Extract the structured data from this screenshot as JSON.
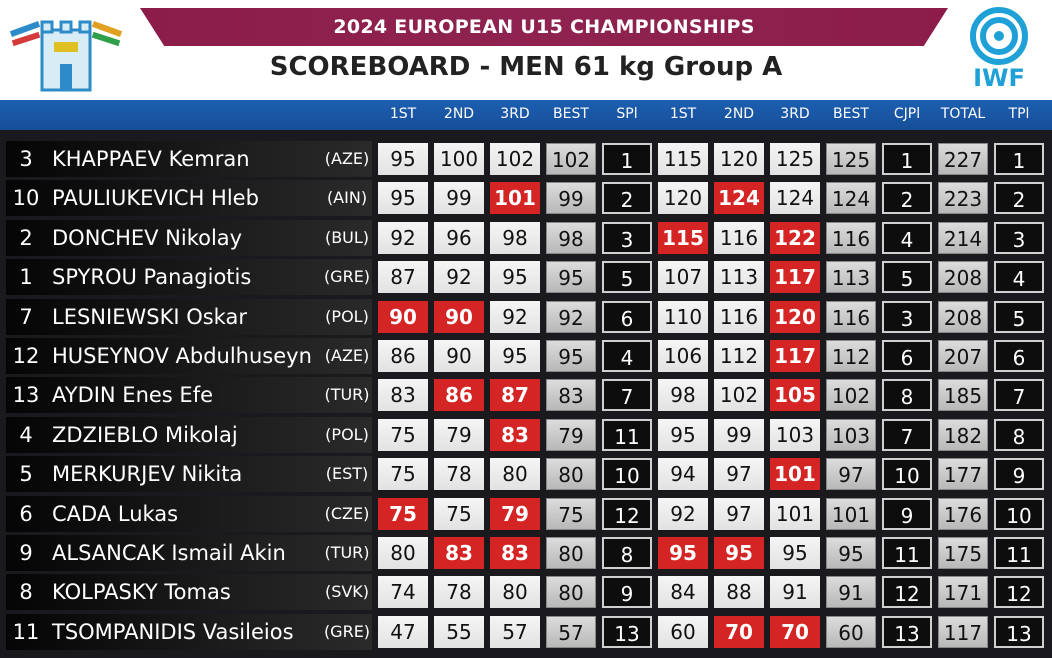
{
  "header": {
    "championship": "2024 EUROPEAN U15 CHAMPIONSHIPS",
    "scoreboard_title": "SCOREBOARD - MEN 61 kg Group A",
    "federation_logo_text": "IWF"
  },
  "columns": [
    "1ST",
    "2ND",
    "3RD",
    "BEST",
    "SPl",
    "1ST",
    "2ND",
    "3RD",
    "BEST",
    "CJPl",
    "TOTAL",
    "TPl"
  ],
  "colors": {
    "good_lift": "#f0f0f0",
    "no_lift": "#d42424",
    "header_band": "#1d5fb0",
    "title_band": "#8c1d4a",
    "iwf_blue": "#1fa1d8"
  },
  "rows": [
    {
      "no": "3",
      "name": "KHAPPAEV Kemran",
      "nation": "(AZE)",
      "sn": [
        [
          "95",
          "g"
        ],
        [
          "100",
          "g"
        ],
        [
          "102",
          "g"
        ]
      ],
      "sn_best": "102",
      "spl": "1",
      "cj": [
        [
          "115",
          "g"
        ],
        [
          "120",
          "g"
        ],
        [
          "125",
          "g"
        ]
      ],
      "cj_best": "125",
      "cjpl": "1",
      "total": "227",
      "tpl": "1"
    },
    {
      "no": "10",
      "name": "PAULIUKEVICH Hleb",
      "nation": "(AIN)",
      "sn": [
        [
          "95",
          "g"
        ],
        [
          "99",
          "g"
        ],
        [
          "101",
          "f"
        ]
      ],
      "sn_best": "99",
      "spl": "2",
      "cj": [
        [
          "120",
          "g"
        ],
        [
          "124",
          "f"
        ],
        [
          "124",
          "g"
        ]
      ],
      "cj_best": "124",
      "cjpl": "2",
      "total": "223",
      "tpl": "2"
    },
    {
      "no": "2",
      "name": "DONCHEV Nikolay",
      "nation": "(BUL)",
      "sn": [
        [
          "92",
          "g"
        ],
        [
          "96",
          "g"
        ],
        [
          "98",
          "g"
        ]
      ],
      "sn_best": "98",
      "spl": "3",
      "cj": [
        [
          "115",
          "f"
        ],
        [
          "116",
          "g"
        ],
        [
          "122",
          "f"
        ]
      ],
      "cj_best": "116",
      "cjpl": "4",
      "total": "214",
      "tpl": "3"
    },
    {
      "no": "1",
      "name": "SPYROU Panagiotis",
      "nation": "(GRE)",
      "sn": [
        [
          "87",
          "g"
        ],
        [
          "92",
          "g"
        ],
        [
          "95",
          "g"
        ]
      ],
      "sn_best": "95",
      "spl": "5",
      "cj": [
        [
          "107",
          "g"
        ],
        [
          "113",
          "g"
        ],
        [
          "117",
          "f"
        ]
      ],
      "cj_best": "113",
      "cjpl": "5",
      "total": "208",
      "tpl": "4"
    },
    {
      "no": "7",
      "name": "LESNIEWSKI Oskar",
      "nation": "(POL)",
      "sn": [
        [
          "90",
          "f"
        ],
        [
          "90",
          "f"
        ],
        [
          "92",
          "g"
        ]
      ],
      "sn_best": "92",
      "spl": "6",
      "cj": [
        [
          "110",
          "g"
        ],
        [
          "116",
          "g"
        ],
        [
          "120",
          "f"
        ]
      ],
      "cj_best": "116",
      "cjpl": "3",
      "total": "208",
      "tpl": "5"
    },
    {
      "no": "12",
      "name": "HUSEYNOV Abdulhuseyn",
      "nation": "(AZE)",
      "sn": [
        [
          "86",
          "g"
        ],
        [
          "90",
          "g"
        ],
        [
          "95",
          "g"
        ]
      ],
      "sn_best": "95",
      "spl": "4",
      "cj": [
        [
          "106",
          "g"
        ],
        [
          "112",
          "g"
        ],
        [
          "117",
          "f"
        ]
      ],
      "cj_best": "112",
      "cjpl": "6",
      "total": "207",
      "tpl": "6"
    },
    {
      "no": "13",
      "name": "AYDIN Enes Efe",
      "nation": "(TUR)",
      "sn": [
        [
          "83",
          "g"
        ],
        [
          "86",
          "f"
        ],
        [
          "87",
          "f"
        ]
      ],
      "sn_best": "83",
      "spl": "7",
      "cj": [
        [
          "98",
          "g"
        ],
        [
          "102",
          "g"
        ],
        [
          "105",
          "f"
        ]
      ],
      "cj_best": "102",
      "cjpl": "8",
      "total": "185",
      "tpl": "7"
    },
    {
      "no": "4",
      "name": "ZDZIEBLO Mikolaj",
      "nation": "(POL)",
      "sn": [
        [
          "75",
          "g"
        ],
        [
          "79",
          "g"
        ],
        [
          "83",
          "f"
        ]
      ],
      "sn_best": "79",
      "spl": "11",
      "cj": [
        [
          "95",
          "g"
        ],
        [
          "99",
          "g"
        ],
        [
          "103",
          "g"
        ]
      ],
      "cj_best": "103",
      "cjpl": "7",
      "total": "182",
      "tpl": "8"
    },
    {
      "no": "5",
      "name": "MERKURJEV Nikita",
      "nation": "(EST)",
      "sn": [
        [
          "75",
          "g"
        ],
        [
          "78",
          "g"
        ],
        [
          "80",
          "g"
        ]
      ],
      "sn_best": "80",
      "spl": "10",
      "cj": [
        [
          "94",
          "g"
        ],
        [
          "97",
          "g"
        ],
        [
          "101",
          "f"
        ]
      ],
      "cj_best": "97",
      "cjpl": "10",
      "total": "177",
      "tpl": "9"
    },
    {
      "no": "6",
      "name": "CADA Lukas",
      "nation": "(CZE)",
      "sn": [
        [
          "75",
          "f"
        ],
        [
          "75",
          "g"
        ],
        [
          "79",
          "f"
        ]
      ],
      "sn_best": "75",
      "spl": "12",
      "cj": [
        [
          "92",
          "g"
        ],
        [
          "97",
          "g"
        ],
        [
          "101",
          "g"
        ]
      ],
      "cj_best": "101",
      "cjpl": "9",
      "total": "176",
      "tpl": "10"
    },
    {
      "no": "9",
      "name": "ALSANCAK Ismail Akin",
      "nation": "(TUR)",
      "sn": [
        [
          "80",
          "g"
        ],
        [
          "83",
          "f"
        ],
        [
          "83",
          "f"
        ]
      ],
      "sn_best": "80",
      "spl": "8",
      "cj": [
        [
          "95",
          "f"
        ],
        [
          "95",
          "f"
        ],
        [
          "95",
          "g"
        ]
      ],
      "cj_best": "95",
      "cjpl": "11",
      "total": "175",
      "tpl": "11"
    },
    {
      "no": "8",
      "name": "KOLPASKY Tomas",
      "nation": "(SVK)",
      "sn": [
        [
          "74",
          "g"
        ],
        [
          "78",
          "g"
        ],
        [
          "80",
          "g"
        ]
      ],
      "sn_best": "80",
      "spl": "9",
      "cj": [
        [
          "84",
          "g"
        ],
        [
          "88",
          "g"
        ],
        [
          "91",
          "g"
        ]
      ],
      "cj_best": "91",
      "cjpl": "12",
      "total": "171",
      "tpl": "12"
    },
    {
      "no": "11",
      "name": "TSOMPANIDIS Vasileios",
      "nation": "(GRE)",
      "sn": [
        [
          "47",
          "g"
        ],
        [
          "55",
          "g"
        ],
        [
          "57",
          "g"
        ]
      ],
      "sn_best": "57",
      "spl": "13",
      "cj": [
        [
          "60",
          "g"
        ],
        [
          "70",
          "f"
        ],
        [
          "70",
          "f"
        ]
      ],
      "cj_best": "60",
      "cjpl": "13",
      "total": "117",
      "tpl": "13"
    }
  ]
}
